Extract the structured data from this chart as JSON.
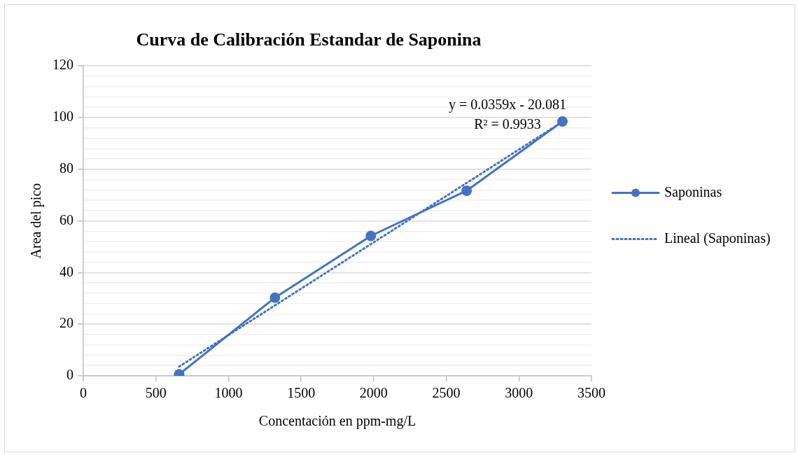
{
  "chart_data": {
    "type": "line",
    "title": "Curva de Calibración Estandar de Saponina",
    "xlabel": "Concentación en ppm-mg/L",
    "ylabel": "Area del pico",
    "x": [
      660,
      1320,
      1980,
      2640,
      3300
    ],
    "series": [
      {
        "name": "Saponinas",
        "color": "#4472c4",
        "values": [
          0.6,
          30.3,
          54.2,
          71.7,
          98.5
        ],
        "marker": "circle",
        "line_style": "solid"
      },
      {
        "name": "Lineal (Saponinas)",
        "color": "#4472c4",
        "type": "line",
        "x": [
          660,
          3300
        ],
        "values": [
          3.6,
          98.4
        ],
        "marker": "none",
        "line_style": "dotted"
      }
    ],
    "annotations": [
      "y = 0.0359x - 20.081",
      "R² = 0.9933"
    ],
    "xlim": [
      0,
      3500
    ],
    "xticks": [
      0,
      500,
      1000,
      1500,
      2000,
      2500,
      3000,
      3500
    ],
    "ylim": [
      0,
      120
    ],
    "yticks": [
      0,
      {
        "value": 4,
        "label": null
      },
      {
        "value": 8,
        "label": null
      },
      {
        "value": 12,
        "label": null
      },
      {
        "value": 16,
        "label": null
      },
      20,
      {
        "value": 24,
        "label": null
      },
      {
        "value": 28,
        "label": null
      },
      {
        "value": 32,
        "label": null
      },
      {
        "value": 36,
        "label": null
      },
      40,
      {
        "value": 44,
        "label": null
      },
      {
        "value": 48,
        "label": null
      },
      {
        "value": 52,
        "label": null
      },
      {
        "value": 56,
        "label": null
      },
      60,
      {
        "value": 64,
        "label": null
      },
      {
        "value": 68,
        "label": null
      },
      {
        "value": 72,
        "label": null
      },
      {
        "value": 76,
        "label": null
      },
      80,
      {
        "value": 84,
        "label": null
      },
      {
        "value": 88,
        "label": null
      },
      {
        "value": 92,
        "label": null
      },
      {
        "value": 96,
        "label": null
      },
      100,
      {
        "value": 104,
        "label": null
      },
      {
        "value": 108,
        "label": null
      },
      {
        "value": 112,
        "label": null
      },
      {
        "value": 116,
        "label": null
      },
      120
    ],
    "grid": "y",
    "legend": "right"
  }
}
